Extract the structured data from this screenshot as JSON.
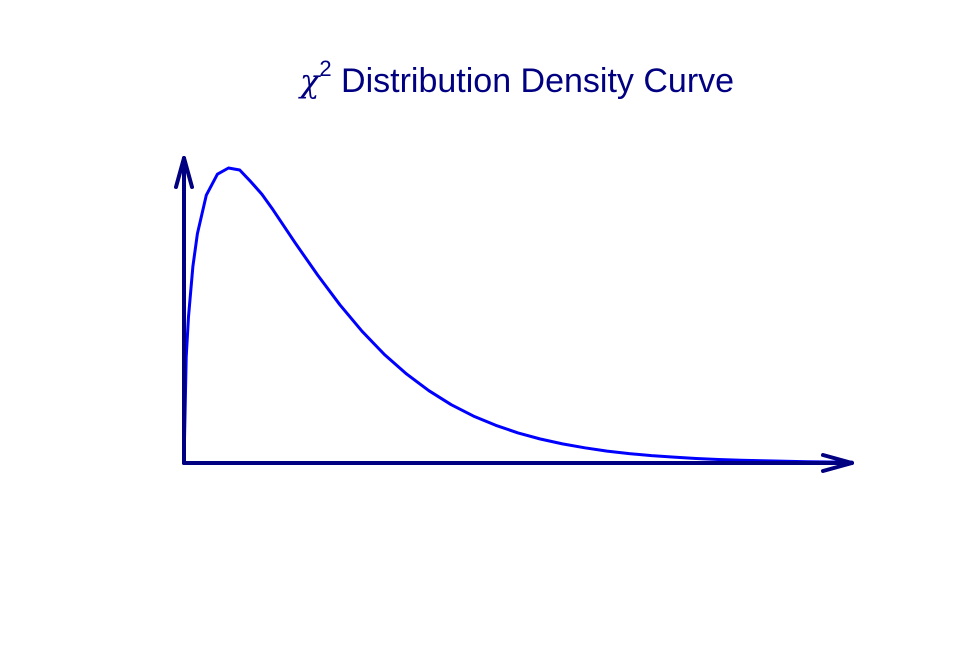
{
  "chart_data": {
    "type": "line",
    "title": {
      "symbol": "χ",
      "superscript": "2",
      "text": "Distribution Density Curve"
    },
    "xlabel": "",
    "ylabel": "",
    "distribution": "chi-squared",
    "degrees_of_freedom": 3,
    "xlim": [
      0,
      15
    ],
    "ylim": [
      0,
      0.25
    ],
    "series": [
      {
        "x": [
          0,
          0.05,
          0.1,
          0.2,
          0.3,
          0.5,
          0.75,
          1,
          1.25,
          1.5,
          1.75,
          2,
          2.5,
          3,
          3.5,
          4,
          4.5,
          5,
          5.5,
          6,
          6.5,
          7,
          7.5,
          8,
          8.5,
          9,
          9.5,
          10,
          10.5,
          11,
          11.5,
          12,
          12.5,
          13,
          13.5,
          14,
          14.5,
          15
        ],
        "y": [
          0,
          0.0868,
          0.12,
          0.1614,
          0.1881,
          0.2197,
          0.2369,
          0.242,
          0.2404,
          0.2308,
          0.2205,
          0.2076,
          0.1804,
          0.1542,
          0.1298,
          0.108,
          0.089,
          0.0729,
          0.0593,
          0.0478,
          0.0385,
          0.0309,
          0.0247,
          0.0197,
          0.0157,
          0.0125,
          0.0098,
          0.0077,
          0.0061,
          0.0048,
          0.0037,
          0.0029,
          0.0023,
          0.0018,
          0.0014,
          0.0011,
          0.0008,
          0.0007
        ]
      }
    ],
    "grid": false,
    "legend": "none",
    "axes_style": "arrows",
    "colors": {
      "curve": "#0000ff",
      "axes": "#000080",
      "title": "#000080"
    }
  }
}
